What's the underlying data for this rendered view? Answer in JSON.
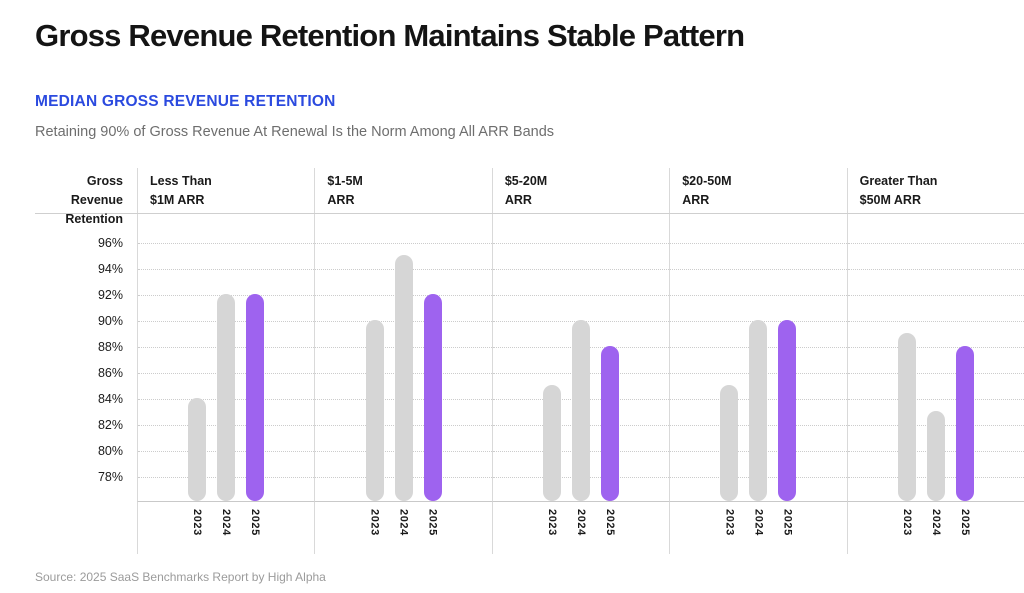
{
  "page": {
    "title": "Gross Revenue Retention Maintains Stable Pattern",
    "kicker": "MEDIAN GROSS REVENUE RETENTION",
    "subtitle": "Retaining 90% of Gross Revenue At Renewal Is the Norm Among All ARR Bands",
    "source": "Source: 2025 SaaS Benchmarks Report by High Alpha"
  },
  "colors": {
    "kicker_blue": "#2b4adf",
    "bar_default_gray": "#d6d6d6",
    "bar_highlight_purple": "#9e63ef",
    "gridline_gray": "#cccccc",
    "separator_gray": "#d9d9d9",
    "subtitle_gray": "#6e6e6e",
    "source_gray": "#9b9b9b"
  },
  "chart_data": {
    "type": "bar",
    "title": "Median Gross Revenue Retention",
    "ylabel_line1": "Gross Revenue",
    "ylabel_line2": "Retention",
    "ylabel": "Gross Revenue Retention",
    "y_axis": {
      "ticks": [
        "96%",
        "94%",
        "92%",
        "90%",
        "88%",
        "86%",
        "84%",
        "82%",
        "80%",
        "78%"
      ],
      "tick_values": [
        96,
        94,
        92,
        90,
        88,
        86,
        84,
        82,
        80,
        78
      ],
      "ylim": [
        76,
        98
      ],
      "unit": "%"
    },
    "grid": "dotted-horizontal",
    "legend_position": "none",
    "categories": [
      "2023",
      "2024",
      "2025"
    ],
    "highlight_category": "2025",
    "panels": [
      {
        "label_line1": "Less Than",
        "label_line2": "$1M ARR",
        "values": [
          84,
          92,
          92
        ]
      },
      {
        "label_line1": "$1-5M",
        "label_line2": "ARR",
        "values": [
          90,
          95,
          92
        ]
      },
      {
        "label_line1": "$5-20M",
        "label_line2": "ARR",
        "values": [
          85,
          90,
          88
        ]
      },
      {
        "label_line1": "$20-50M",
        "label_line2": "ARR",
        "values": [
          85,
          90,
          90
        ]
      },
      {
        "label_line1": "Greater Than",
        "label_line2": "$50M ARR",
        "values": [
          89,
          83,
          88
        ]
      }
    ]
  }
}
